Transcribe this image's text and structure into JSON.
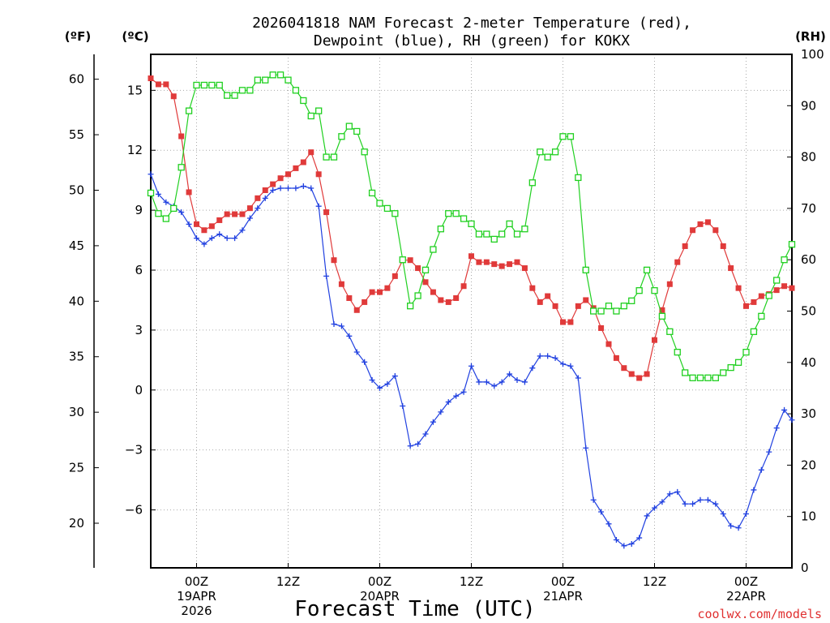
{
  "title_line1": "2026041818 NAM Forecast 2-meter Temperature (red),",
  "title_line2": "Dewpoint (blue), RH (green) for KOKX",
  "credit": "coolwx.com/models",
  "colors": {
    "temperature": "#e03a3a",
    "dewpoint": "#2040e0",
    "rh": "#20d020",
    "credit": "#e03030",
    "grid": "#aaaaaa"
  },
  "chart_data": {
    "type": "line",
    "title": "2026041818 NAM Forecast 2-meter Temperature (red), Dewpoint (blue), RH (green) for KOKX",
    "xlabel": "Forecast Time (UTC)",
    "x_unit": "hours from 2026-04-18 18Z",
    "xlim": [
      0,
      84
    ],
    "x_ticks": [
      {
        "hour": 6,
        "label": "00Z",
        "date": "19APR",
        "year": "2026"
      },
      {
        "hour": 18,
        "label": "12Z"
      },
      {
        "hour": 30,
        "label": "00Z",
        "date": "20APR"
      },
      {
        "hour": 42,
        "label": "12Z"
      },
      {
        "hour": 54,
        "label": "00Z",
        "date": "21APR"
      },
      {
        "hour": 66,
        "label": "12Z"
      },
      {
        "hour": 78,
        "label": "00Z",
        "date": "22APR"
      }
    ],
    "left_axis_c": {
      "label": "(ºC)",
      "ylim": [
        -8.9,
        16.8
      ],
      "ticks": [
        "15",
        "12",
        "9",
        "6",
        "3",
        "0",
        "−3",
        "−6"
      ]
    },
    "left_axis_f": {
      "label": "(ºF)",
      "ticks": [
        "60",
        "55",
        "50",
        "45",
        "40",
        "35",
        "30",
        "25",
        "20"
      ]
    },
    "right_axis_rh": {
      "label": "(RH)",
      "ylim": [
        0,
        100
      ],
      "ticks": [
        "100",
        "90",
        "80",
        "70",
        "60",
        "50",
        "40",
        "30",
        "20",
        "10",
        "0"
      ]
    },
    "grid": true,
    "series": [
      {
        "name": "Temperature",
        "axis": "C",
        "marker": "filled-square",
        "x": [
          0,
          1,
          2,
          3,
          4,
          5,
          6,
          7,
          8,
          9,
          10,
          11,
          12,
          13,
          14,
          15,
          16,
          17,
          18,
          19,
          20,
          21,
          22,
          23,
          24,
          25,
          26,
          27,
          28,
          29,
          30,
          31,
          32,
          33,
          34,
          35,
          36,
          37,
          38,
          39,
          40,
          41,
          42,
          43,
          44,
          45,
          46,
          47,
          48,
          49,
          50,
          51,
          52,
          53,
          54,
          55,
          56,
          57,
          58,
          59,
          60,
          61,
          62,
          63,
          64,
          65,
          66,
          67,
          68,
          69,
          70,
          71,
          72,
          73,
          74,
          75,
          76,
          77,
          78,
          79,
          80,
          81,
          82,
          83,
          84
        ],
        "values": [
          15.6,
          15.3,
          15.3,
          14.7,
          12.7,
          9.9,
          8.3,
          8.0,
          8.2,
          8.5,
          8.8,
          8.8,
          8.8,
          9.1,
          9.6,
          10.0,
          10.3,
          10.6,
          10.8,
          11.1,
          11.4,
          11.9,
          10.8,
          8.9,
          6.5,
          5.3,
          4.6,
          4.0,
          4.4,
          4.9,
          4.9,
          5.1,
          5.7,
          6.5,
          6.5,
          6.1,
          5.4,
          4.9,
          4.5,
          4.4,
          4.6,
          5.2,
          6.7,
          6.4,
          6.4,
          6.3,
          6.2,
          6.3,
          6.4,
          6.1,
          5.1,
          4.4,
          4.7,
          4.2,
          3.4,
          3.4,
          4.2,
          4.5,
          4.1,
          3.1,
          2.3,
          1.6,
          1.1,
          0.8,
          0.6,
          0.8,
          2.5,
          4.0,
          5.3,
          6.4,
          7.2,
          8.0,
          8.3,
          8.4,
          8.0,
          7.2,
          6.1,
          5.1,
          4.2,
          4.4,
          4.7,
          4.8,
          5.0,
          5.2,
          5.1
        ]
      },
      {
        "name": "Dewpoint",
        "axis": "C",
        "marker": "plus",
        "x": [
          0,
          1,
          2,
          3,
          4,
          5,
          6,
          7,
          8,
          9,
          10,
          11,
          12,
          13,
          14,
          15,
          16,
          17,
          18,
          19,
          20,
          21,
          22,
          23,
          24,
          25,
          26,
          27,
          28,
          29,
          30,
          31,
          32,
          33,
          34,
          35,
          36,
          37,
          38,
          39,
          40,
          41,
          42,
          43,
          44,
          45,
          46,
          47,
          48,
          49,
          50,
          51,
          52,
          53,
          54,
          55,
          56,
          57,
          58,
          59,
          60,
          61,
          62,
          63,
          64,
          65,
          66,
          67,
          68,
          69,
          70,
          71,
          72,
          73,
          74,
          75,
          76,
          77,
          78,
          79,
          80,
          81,
          82,
          83,
          84
        ],
        "values": [
          10.8,
          9.8,
          9.4,
          9.2,
          8.9,
          8.3,
          7.6,
          7.3,
          7.6,
          7.8,
          7.6,
          7.6,
          8.0,
          8.6,
          9.1,
          9.6,
          10.0,
          10.1,
          10.1,
          10.1,
          10.2,
          10.1,
          9.2,
          5.7,
          3.3,
          3.2,
          2.7,
          1.9,
          1.4,
          0.5,
          0.1,
          0.3,
          0.7,
          -0.8,
          -2.8,
          -2.7,
          -2.2,
          -1.6,
          -1.1,
          -0.6,
          -0.3,
          -0.1,
          1.2,
          0.4,
          0.4,
          0.2,
          0.4,
          0.8,
          0.5,
          0.4,
          1.1,
          1.7,
          1.7,
          1.6,
          1.3,
          1.2,
          0.6,
          -2.9,
          -5.5,
          -6.1,
          -6.7,
          -7.5,
          -7.8,
          -7.7,
          -7.4,
          -6.3,
          -5.9,
          -5.6,
          -5.2,
          -5.1,
          -5.7,
          -5.7,
          -5.5,
          -5.5,
          -5.7,
          -6.2,
          -6.8,
          -6.9,
          -6.2,
          -5.0,
          -4.0,
          -3.1,
          -1.9,
          -1.0,
          -1.5
        ]
      },
      {
        "name": "RH",
        "axis": "RH",
        "marker": "open-square",
        "x": [
          0,
          1,
          2,
          3,
          4,
          5,
          6,
          7,
          8,
          9,
          10,
          11,
          12,
          13,
          14,
          15,
          16,
          17,
          18,
          19,
          20,
          21,
          22,
          23,
          24,
          25,
          26,
          27,
          28,
          29,
          30,
          31,
          32,
          33,
          34,
          35,
          36,
          37,
          38,
          39,
          40,
          41,
          42,
          43,
          44,
          45,
          46,
          47,
          48,
          49,
          50,
          51,
          52,
          53,
          54,
          55,
          56,
          57,
          58,
          59,
          60,
          61,
          62,
          63,
          64,
          65,
          66,
          67,
          68,
          69,
          70,
          71,
          72,
          73,
          74,
          75,
          76,
          77,
          78,
          79,
          80,
          81,
          82,
          83,
          84
        ],
        "values": [
          73,
          69,
          68,
          70,
          78,
          89,
          94,
          94,
          94,
          94,
          92,
          92,
          93,
          93,
          95,
          95,
          96,
          96,
          95,
          93,
          91,
          88,
          89,
          80,
          80,
          84,
          86,
          85,
          81,
          73,
          71,
          70,
          69,
          60,
          51,
          53,
          58,
          62,
          66,
          69,
          69,
          68,
          67,
          65,
          65,
          64,
          65,
          67,
          65,
          66,
          75,
          81,
          80,
          81,
          84,
          84,
          76,
          58,
          50,
          50,
          51,
          50,
          51,
          52,
          54,
          58,
          54,
          49,
          46,
          42,
          38,
          37,
          37,
          37,
          37,
          38,
          39,
          40,
          42,
          46,
          49,
          53,
          56,
          60,
          63
        ]
      }
    ]
  }
}
